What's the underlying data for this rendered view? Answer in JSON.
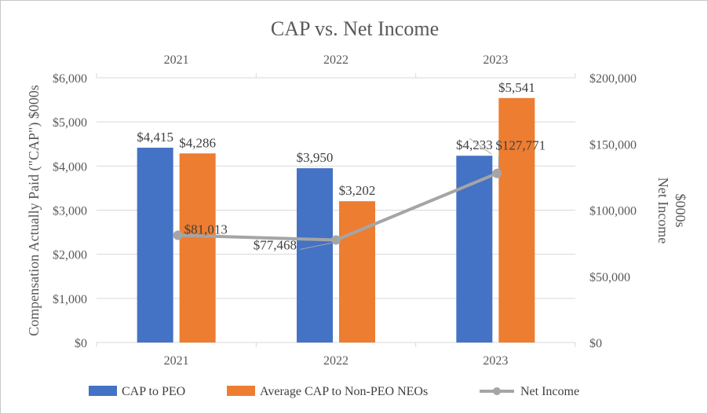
{
  "chart_data": {
    "type": "bar",
    "title": "CAP vs. Net Income",
    "categories": [
      "2021",
      "2022",
      "2023"
    ],
    "top_categories": [
      "2021",
      "2022",
      "2023"
    ],
    "ylabel": "Compensation Actually Paid (\"CAP\") $000s",
    "y2label_line1": "Net Income",
    "y2label_line2": "$000s",
    "ylim": [
      0,
      6000
    ],
    "y_ticks": [
      0,
      1000,
      2000,
      3000,
      4000,
      5000,
      6000
    ],
    "y_tick_labels": [
      "$0",
      "$1,000",
      "$2,000",
      "$3,000",
      "$4,000",
      "$5,000",
      "$6,000"
    ],
    "y2lim": [
      0,
      200000
    ],
    "y2_ticks": [
      0,
      50000,
      100000,
      150000,
      200000
    ],
    "y2_tick_labels": [
      "$0",
      "$50,000",
      "$100,000",
      "$150,000",
      "$200,000"
    ],
    "grid": true,
    "legend_position": "bottom",
    "series": [
      {
        "name": "CAP to PEO",
        "type": "bar",
        "axis": "left",
        "color": "#4472C4",
        "values": [
          4415,
          3950,
          4233
        ],
        "labels": [
          "$4,415",
          "$3,950",
          "$4,233"
        ]
      },
      {
        "name": "Average CAP to Non-PEO NEOs",
        "type": "bar",
        "axis": "left",
        "color": "#ED7D31",
        "values": [
          4286,
          3202,
          5541
        ],
        "labels": [
          "$4,286",
          "$3,202",
          "$5,541"
        ]
      },
      {
        "name": "Net Income",
        "type": "line",
        "axis": "right",
        "color": "#A5A5A5",
        "values": [
          81013,
          77468,
          127771
        ],
        "labels": [
          "$81,013",
          "$77,468",
          "$127,771"
        ]
      }
    ]
  }
}
